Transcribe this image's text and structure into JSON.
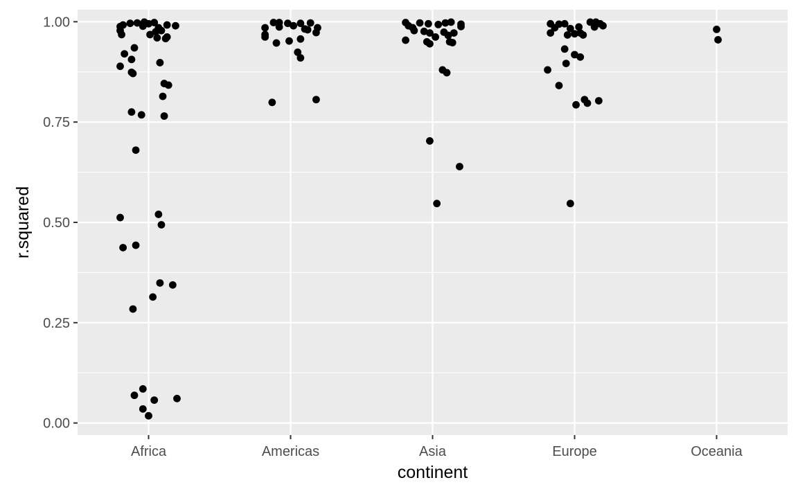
{
  "chart_data": {
    "type": "scatter",
    "subtype": "jitter",
    "title": "",
    "xlabel": "continent",
    "ylabel": "r.squared",
    "categories": [
      "Africa",
      "Americas",
      "Asia",
      "Europe",
      "Oceania"
    ],
    "ylim": [
      -0.03,
      1.03
    ],
    "y_ticks": [
      0.0,
      0.25,
      0.5,
      0.75,
      1.0
    ],
    "y_tick_labels": [
      "0.00",
      "0.25",
      "0.50",
      "0.75",
      "1.00"
    ],
    "grid": true,
    "legend": "none",
    "colors": {
      "panel": "#EBEBEB",
      "grid": "#FFFFFF",
      "point": "#000000",
      "tick_text": "#4D4D4D",
      "axis_title": "#000000"
    },
    "points": [
      {
        "category": "Africa",
        "jitter": -0.2,
        "y": 0.988
      },
      {
        "category": "Africa",
        "jitter": -0.18,
        "y": 0.992
      },
      {
        "category": "Africa",
        "jitter": -0.13,
        "y": 0.996
      },
      {
        "category": "Africa",
        "jitter": -0.08,
        "y": 0.997
      },
      {
        "category": "Africa",
        "jitter": -0.03,
        "y": 0.999
      },
      {
        "category": "Africa",
        "jitter": 0.0,
        "y": 0.995
      },
      {
        "category": "Africa",
        "jitter": 0.04,
        "y": 0.998
      },
      {
        "category": "Africa",
        "jitter": 0.07,
        "y": 0.985
      },
      {
        "category": "Africa",
        "jitter": -0.04,
        "y": 0.989
      },
      {
        "category": "Africa",
        "jitter": 0.13,
        "y": 0.992
      },
      {
        "category": "Africa",
        "jitter": 0.19,
        "y": 0.99
      },
      {
        "category": "Africa",
        "jitter": -0.2,
        "y": 0.978
      },
      {
        "category": "Africa",
        "jitter": 0.05,
        "y": 0.975
      },
      {
        "category": "Africa",
        "jitter": 0.09,
        "y": 0.978
      },
      {
        "category": "Africa",
        "jitter": 0.01,
        "y": 0.968
      },
      {
        "category": "Africa",
        "jitter": -0.19,
        "y": 0.968
      },
      {
        "category": "Africa",
        "jitter": 0.06,
        "y": 0.96
      },
      {
        "category": "Africa",
        "jitter": 0.13,
        "y": 0.962
      },
      {
        "category": "Africa",
        "jitter": 0.12,
        "y": 0.958
      },
      {
        "category": "Africa",
        "jitter": -0.1,
        "y": 0.935
      },
      {
        "category": "Africa",
        "jitter": -0.17,
        "y": 0.92
      },
      {
        "category": "Africa",
        "jitter": -0.12,
        "y": 0.906
      },
      {
        "category": "Africa",
        "jitter": 0.08,
        "y": 0.898
      },
      {
        "category": "Africa",
        "jitter": -0.2,
        "y": 0.889
      },
      {
        "category": "Africa",
        "jitter": -0.12,
        "y": 0.874
      },
      {
        "category": "Africa",
        "jitter": -0.11,
        "y": 0.871
      },
      {
        "category": "Africa",
        "jitter": 0.11,
        "y": 0.846
      },
      {
        "category": "Africa",
        "jitter": 0.14,
        "y": 0.842
      },
      {
        "category": "Africa",
        "jitter": 0.1,
        "y": 0.814
      },
      {
        "category": "Africa",
        "jitter": -0.12,
        "y": 0.775
      },
      {
        "category": "Africa",
        "jitter": -0.05,
        "y": 0.768
      },
      {
        "category": "Africa",
        "jitter": 0.11,
        "y": 0.765
      },
      {
        "category": "Africa",
        "jitter": -0.09,
        "y": 0.68
      },
      {
        "category": "Africa",
        "jitter": 0.07,
        "y": 0.52
      },
      {
        "category": "Africa",
        "jitter": -0.2,
        "y": 0.512
      },
      {
        "category": "Africa",
        "jitter": 0.09,
        "y": 0.494
      },
      {
        "category": "Africa",
        "jitter": -0.09,
        "y": 0.443
      },
      {
        "category": "Africa",
        "jitter": -0.18,
        "y": 0.437
      },
      {
        "category": "Africa",
        "jitter": 0.08,
        "y": 0.349
      },
      {
        "category": "Africa",
        "jitter": 0.17,
        "y": 0.344
      },
      {
        "category": "Africa",
        "jitter": 0.03,
        "y": 0.314
      },
      {
        "category": "Africa",
        "jitter": -0.11,
        "y": 0.284
      },
      {
        "category": "Africa",
        "jitter": -0.04,
        "y": 0.085
      },
      {
        "category": "Africa",
        "jitter": -0.1,
        "y": 0.069
      },
      {
        "category": "Africa",
        "jitter": 0.2,
        "y": 0.061
      },
      {
        "category": "Africa",
        "jitter": 0.04,
        "y": 0.057
      },
      {
        "category": "Africa",
        "jitter": -0.04,
        "y": 0.035
      },
      {
        "category": "Africa",
        "jitter": 0.0,
        "y": 0.018
      },
      {
        "category": "Americas",
        "jitter": -0.18,
        "y": 0.985
      },
      {
        "category": "Americas",
        "jitter": -0.12,
        "y": 0.998
      },
      {
        "category": "Americas",
        "jitter": -0.08,
        "y": 0.998
      },
      {
        "category": "Americas",
        "jitter": -0.02,
        "y": 0.996
      },
      {
        "category": "Americas",
        "jitter": -0.08,
        "y": 0.987
      },
      {
        "category": "Americas",
        "jitter": 0.02,
        "y": 0.99
      },
      {
        "category": "Americas",
        "jitter": 0.07,
        "y": 0.996
      },
      {
        "category": "Americas",
        "jitter": 0.14,
        "y": 0.997
      },
      {
        "category": "Americas",
        "jitter": 0.19,
        "y": 0.985
      },
      {
        "category": "Americas",
        "jitter": 0.1,
        "y": 0.982
      },
      {
        "category": "Americas",
        "jitter": 0.12,
        "y": 0.98
      },
      {
        "category": "Americas",
        "jitter": 0.18,
        "y": 0.973
      },
      {
        "category": "Americas",
        "jitter": -0.18,
        "y": 0.968
      },
      {
        "category": "Americas",
        "jitter": -0.18,
        "y": 0.962
      },
      {
        "category": "Americas",
        "jitter": 0.07,
        "y": 0.957
      },
      {
        "category": "Americas",
        "jitter": -0.01,
        "y": 0.952
      },
      {
        "category": "Americas",
        "jitter": -0.1,
        "y": 0.947
      },
      {
        "category": "Americas",
        "jitter": 0.05,
        "y": 0.924
      },
      {
        "category": "Americas",
        "jitter": 0.07,
        "y": 0.91
      },
      {
        "category": "Americas",
        "jitter": 0.18,
        "y": 0.806
      },
      {
        "category": "Americas",
        "jitter": -0.13,
        "y": 0.799
      },
      {
        "category": "Asia",
        "jitter": -0.19,
        "y": 0.998
      },
      {
        "category": "Asia",
        "jitter": -0.17,
        "y": 0.99
      },
      {
        "category": "Asia",
        "jitter": -0.14,
        "y": 0.985
      },
      {
        "category": "Asia",
        "jitter": -0.09,
        "y": 0.997
      },
      {
        "category": "Asia",
        "jitter": -0.03,
        "y": 0.995
      },
      {
        "category": "Asia",
        "jitter": 0.04,
        "y": 0.993
      },
      {
        "category": "Asia",
        "jitter": 0.09,
        "y": 0.997
      },
      {
        "category": "Asia",
        "jitter": 0.13,
        "y": 0.999
      },
      {
        "category": "Asia",
        "jitter": 0.2,
        "y": 0.994
      },
      {
        "category": "Asia",
        "jitter": 0.2,
        "y": 0.988
      },
      {
        "category": "Asia",
        "jitter": -0.13,
        "y": 0.978
      },
      {
        "category": "Asia",
        "jitter": -0.06,
        "y": 0.976
      },
      {
        "category": "Asia",
        "jitter": -0.02,
        "y": 0.972
      },
      {
        "category": "Asia",
        "jitter": 0.08,
        "y": 0.974
      },
      {
        "category": "Asia",
        "jitter": 0.15,
        "y": 0.972
      },
      {
        "category": "Asia",
        "jitter": 0.11,
        "y": 0.966
      },
      {
        "category": "Asia",
        "jitter": 0.02,
        "y": 0.962
      },
      {
        "category": "Asia",
        "jitter": -0.19,
        "y": 0.954
      },
      {
        "category": "Asia",
        "jitter": -0.04,
        "y": 0.95
      },
      {
        "category": "Asia",
        "jitter": -0.02,
        "y": 0.945
      },
      {
        "category": "Asia",
        "jitter": 0.12,
        "y": 0.95
      },
      {
        "category": "Asia",
        "jitter": 0.14,
        "y": 0.948
      },
      {
        "category": "Asia",
        "jitter": 0.07,
        "y": 0.88
      },
      {
        "category": "Asia",
        "jitter": 0.1,
        "y": 0.873
      },
      {
        "category": "Asia",
        "jitter": -0.02,
        "y": 0.703
      },
      {
        "category": "Asia",
        "jitter": 0.19,
        "y": 0.639
      },
      {
        "category": "Asia",
        "jitter": 0.03,
        "y": 0.547
      },
      {
        "category": "Europe",
        "jitter": -0.17,
        "y": 0.995
      },
      {
        "category": "Europe",
        "jitter": -0.11,
        "y": 0.994
      },
      {
        "category": "Europe",
        "jitter": -0.07,
        "y": 0.995
      },
      {
        "category": "Europe",
        "jitter": -0.14,
        "y": 0.985
      },
      {
        "category": "Europe",
        "jitter": -0.03,
        "y": 0.983
      },
      {
        "category": "Europe",
        "jitter": 0.03,
        "y": 0.987
      },
      {
        "category": "Europe",
        "jitter": 0.11,
        "y": 0.999
      },
      {
        "category": "Europe",
        "jitter": 0.15,
        "y": 0.999
      },
      {
        "category": "Europe",
        "jitter": 0.18,
        "y": 0.995
      },
      {
        "category": "Europe",
        "jitter": 0.2,
        "y": 0.99
      },
      {
        "category": "Europe",
        "jitter": 0.14,
        "y": 0.987
      },
      {
        "category": "Europe",
        "jitter": -0.17,
        "y": 0.972
      },
      {
        "category": "Europe",
        "jitter": -0.05,
        "y": 0.967
      },
      {
        "category": "Europe",
        "jitter": 0.0,
        "y": 0.97
      },
      {
        "category": "Europe",
        "jitter": 0.04,
        "y": 0.972
      },
      {
        "category": "Europe",
        "jitter": 0.06,
        "y": 0.967
      },
      {
        "category": "Europe",
        "jitter": -0.07,
        "y": 0.932
      },
      {
        "category": "Europe",
        "jitter": 0.0,
        "y": 0.918
      },
      {
        "category": "Europe",
        "jitter": 0.04,
        "y": 0.912
      },
      {
        "category": "Europe",
        "jitter": -0.06,
        "y": 0.896
      },
      {
        "category": "Europe",
        "jitter": -0.19,
        "y": 0.88
      },
      {
        "category": "Europe",
        "jitter": -0.11,
        "y": 0.841
      },
      {
        "category": "Europe",
        "jitter": 0.07,
        "y": 0.806
      },
      {
        "category": "Europe",
        "jitter": 0.17,
        "y": 0.803
      },
      {
        "category": "Europe",
        "jitter": 0.09,
        "y": 0.797
      },
      {
        "category": "Europe",
        "jitter": 0.01,
        "y": 0.793
      },
      {
        "category": "Europe",
        "jitter": -0.03,
        "y": 0.547
      },
      {
        "category": "Oceania",
        "jitter": 0.0,
        "y": 0.981
      },
      {
        "category": "Oceania",
        "jitter": 0.01,
        "y": 0.955
      }
    ]
  }
}
